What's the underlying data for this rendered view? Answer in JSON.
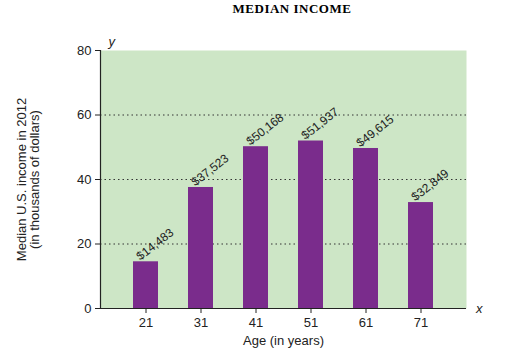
{
  "chart_data": {
    "type": "bar",
    "title": "MEDIAN INCOME",
    "x_label": "Age (in years)",
    "y_label": "Median U.S. income in 2012\n(in thousands of dollars)",
    "categories": [
      "21",
      "31",
      "41",
      "51",
      "61",
      "71"
    ],
    "values": [
      14.483,
      37.523,
      50.168,
      51.937,
      49.615,
      32.849
    ],
    "value_labels": [
      "$14,483",
      "$37,523",
      "$50,168",
      "$51,937",
      "$49,615",
      "$32,849"
    ],
    "color": "#7a2c8c",
    "ylim": [
      0,
      80
    ],
    "yticks": [
      0,
      20,
      40,
      60,
      80
    ],
    "grid": true,
    "data_labels": true,
    "annotations": [
      "y",
      "x"
    ]
  }
}
